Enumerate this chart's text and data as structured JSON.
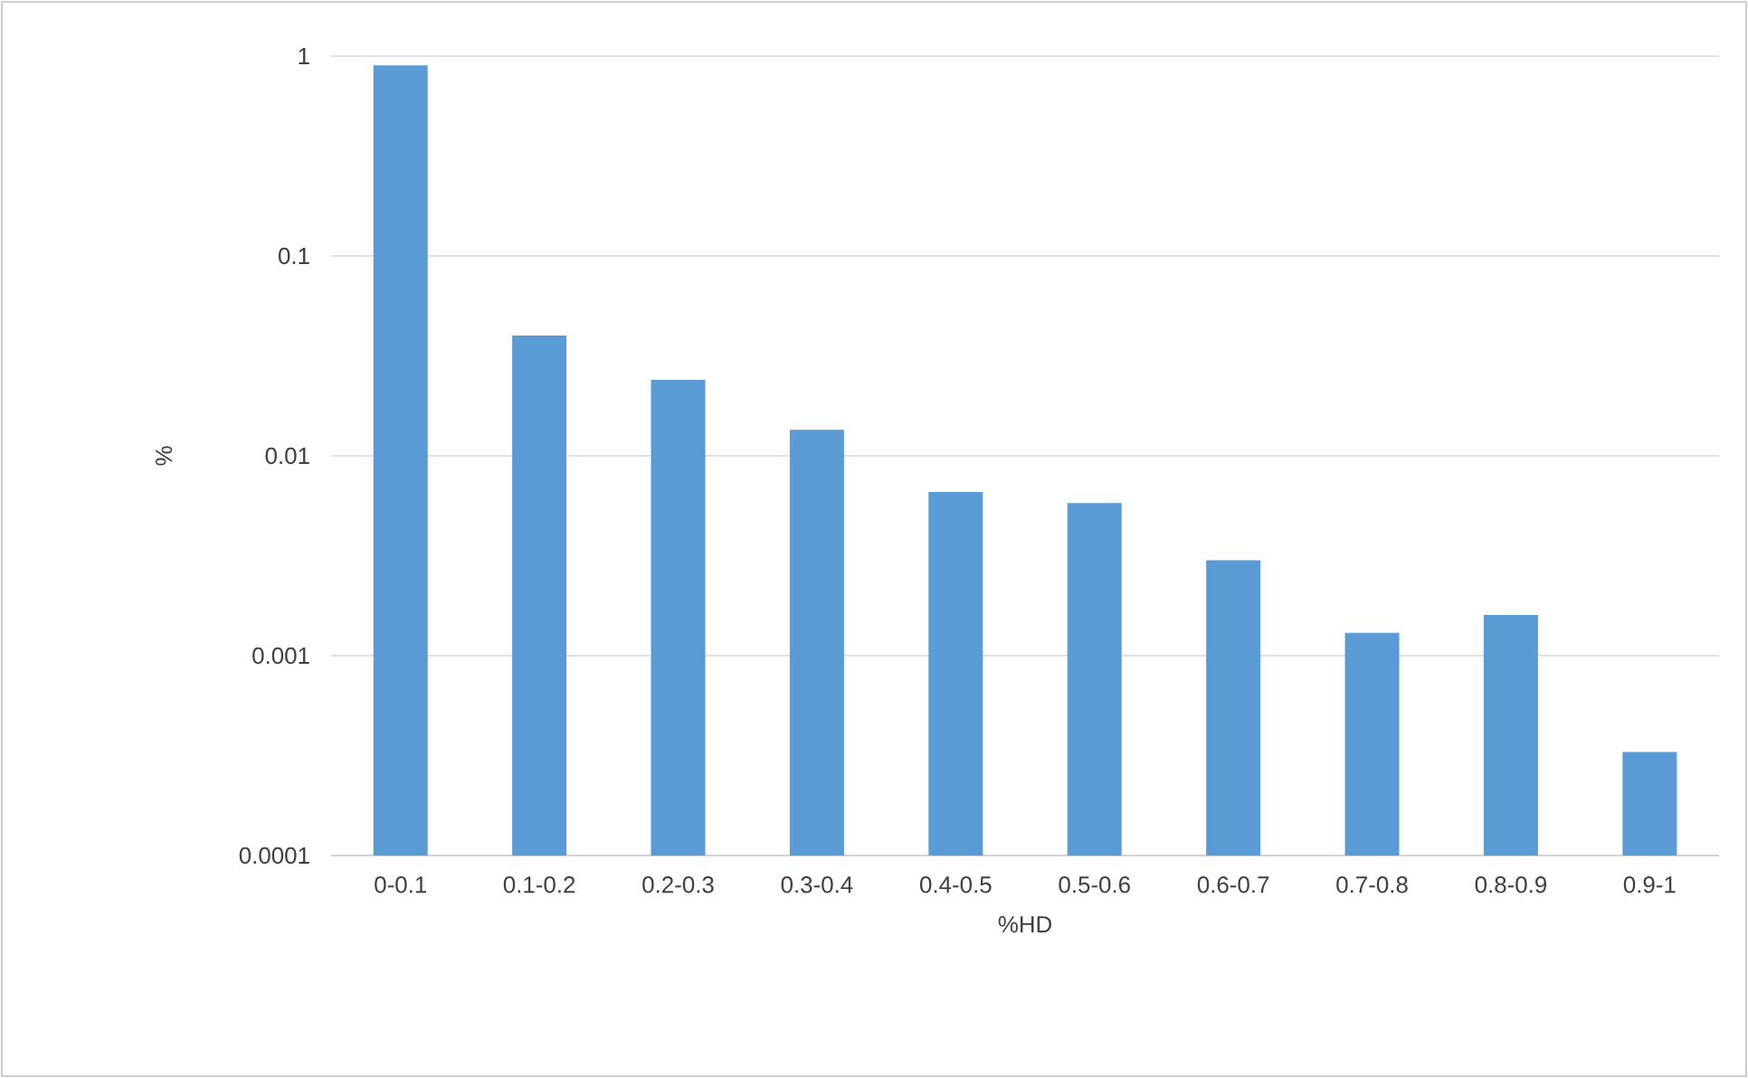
{
  "chart_data": {
    "type": "bar",
    "xlabel": "%HD",
    "ylabel": "%",
    "categories": [
      "0-0.1",
      "0.1-0.2",
      "0.2-0.3",
      "0.3-0.4",
      "0.4-0.5",
      "0.5-0.6",
      "0.6-0.7",
      "0.7-0.8",
      "0.8-0.9",
      "0.9-1"
    ],
    "values": [
      0.9,
      0.04,
      0.024,
      0.0135,
      0.0066,
      0.0058,
      0.003,
      0.0013,
      0.0016,
      0.00033
    ],
    "color": "#5b9bd5",
    "log": "y",
    "ylim": [
      0.0001,
      1
    ],
    "yticks": [
      0.0001,
      0.001,
      0.01,
      0.1,
      1
    ],
    "grid": "y"
  }
}
